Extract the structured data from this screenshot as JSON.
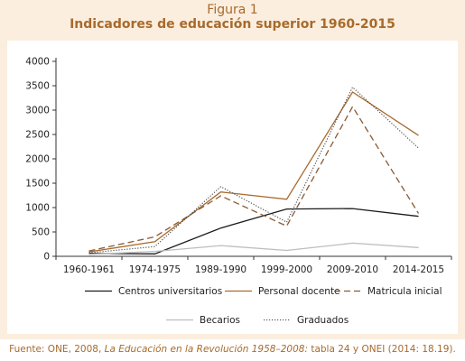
{
  "figure_label": "Figura 1",
  "figure_title": "Indicadores de educación superior 1960-2015",
  "source": {
    "prefix": "Fuente: ONE, 2008, ",
    "italic": "La Educación en la Revolución 1958–2008:",
    "suffix": " tabla 24 y ONEI (2014: 18.19)."
  },
  "colors": {
    "panel_background": "#fbeede",
    "title_color": "#a86a2c",
    "centros": "#1a1a1a",
    "personal": "#a86a2c",
    "matricula": "#8a5a32",
    "becarios": "#bdbdbd",
    "graduados": "#444444"
  },
  "chart_data": {
    "type": "line",
    "categories": [
      "1960-1961",
      "1974-1975",
      "1989-1990",
      "1999-2000",
      "2009-2010",
      "2014-2015"
    ],
    "ylim": [
      0,
      4000
    ],
    "yticks": [
      "0",
      "500",
      "1000",
      "1500",
      "2000",
      "2500",
      "3000",
      "3500",
      "4000"
    ],
    "grid": false,
    "legend_position": "bottom",
    "series": [
      {
        "name": "Centros universitarios",
        "key": "centros",
        "style": "solid",
        "values": [
          60,
          50,
          580,
          970,
          980,
          820
        ]
      },
      {
        "name": "Personal docente",
        "key": "personal",
        "style": "solid",
        "values": [
          90,
          300,
          1320,
          1170,
          3370,
          2480
        ]
      },
      {
        "name": "Matricula inicial",
        "key": "matricula",
        "style": "dashed",
        "values": [
          110,
          400,
          1240,
          620,
          3070,
          880
        ]
      },
      {
        "name": "Becarios",
        "key": "becarios",
        "style": "solid",
        "values": [
          40,
          100,
          220,
          120,
          270,
          180
        ]
      },
      {
        "name": "Graduados",
        "key": "graduados",
        "style": "dotted",
        "values": [
          70,
          200,
          1430,
          700,
          3470,
          2220
        ]
      }
    ]
  }
}
